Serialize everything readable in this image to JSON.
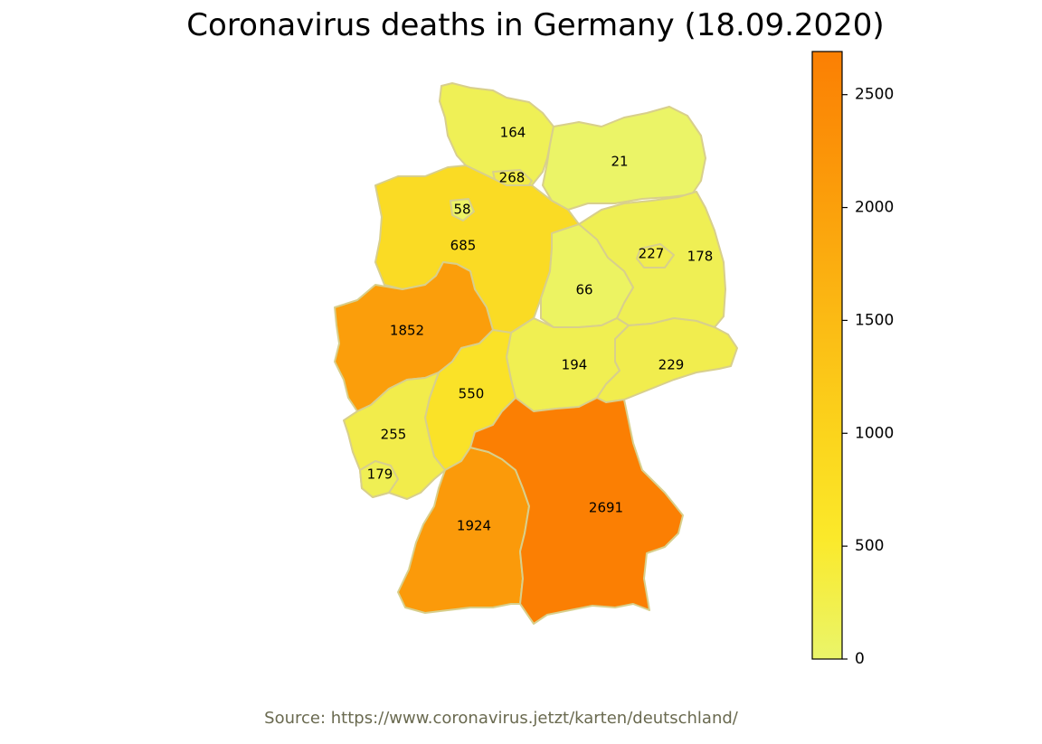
{
  "title": "Coronavirus deaths in Germany (18.09.2020)",
  "source": "Source: https://www.coronavirus.jetzt/karten/deutschland/",
  "colorbar": {
    "min": 0,
    "max": 2691,
    "ticks": [
      0,
      500,
      1000,
      1500,
      2000,
      2500
    ],
    "colors": [
      "#eaf56a",
      "#fae328",
      "#fbc518",
      "#fba90f",
      "#fb8f07",
      "#fb7f03"
    ]
  },
  "chart_data": {
    "type": "choropleth",
    "title": "Coronavirus deaths in Germany (18.09.2020)",
    "values": [
      164,
      268,
      21,
      58,
      685,
      227,
      178,
      66,
      1852,
      194,
      229,
      550,
      255,
      179,
      1924,
      2691
    ]
  }
}
